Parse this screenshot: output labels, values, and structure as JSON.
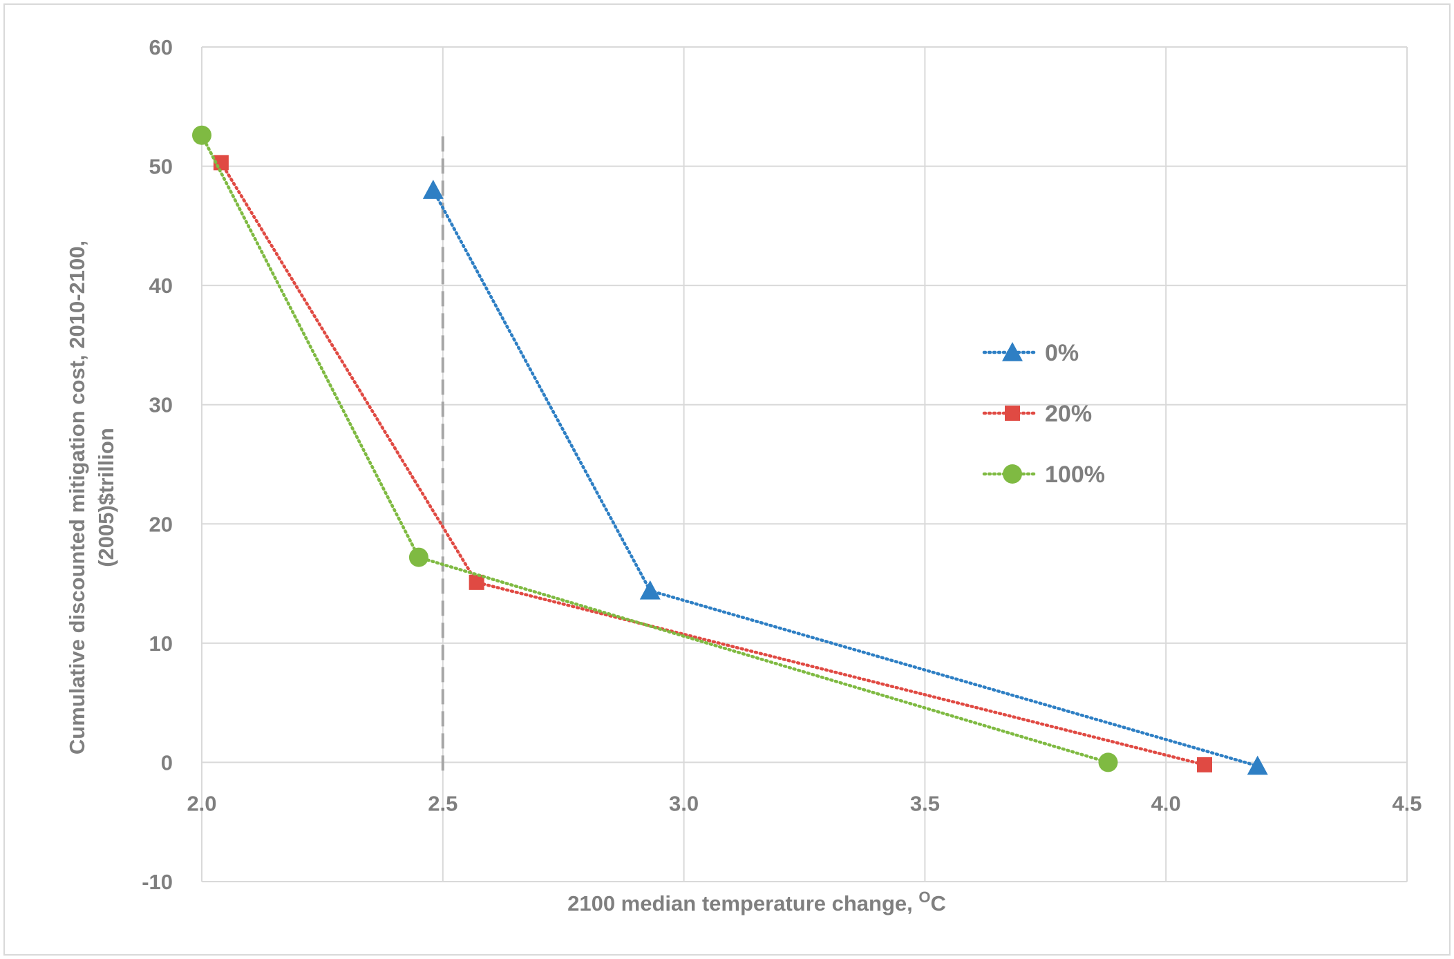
{
  "chart_data": {
    "type": "line",
    "title": "",
    "xlabel": "2100 median temperature change, ",
    "xlabel_unit_sup": "O",
    "xlabel_unit": "C",
    "ylabel_line1": "Cumulative discounted mitigation cost, 2010-2100,",
    "ylabel_line2": "(2005)$trillion",
    "xlim": [
      2.0,
      4.5
    ],
    "ylim": [
      -10,
      60
    ],
    "x_ticks": [
      2.0,
      2.5,
      3.0,
      3.5,
      4.0,
      4.5
    ],
    "x_tick_labels": [
      "2.0",
      "2.5",
      "3.0",
      "3.5",
      "4.0",
      "4.5"
    ],
    "y_ticks": [
      -10,
      0,
      10,
      20,
      30,
      40,
      50,
      60
    ],
    "y_tick_labels": [
      "-10",
      "0",
      "10",
      "20",
      "30",
      "40",
      "50",
      "60"
    ],
    "grid": true,
    "reference_line": {
      "x": 2.5,
      "y_from": 0,
      "y_to": 52.5,
      "style": "dashed",
      "color": "#a6a6a6"
    },
    "legend_position": "right",
    "series": [
      {
        "name": "0%",
        "color": "#2e7fc4",
        "marker": "triangle",
        "x": [
          2.48,
          2.93,
          4.19
        ],
        "y": [
          48.0,
          14.4,
          -0.3
        ]
      },
      {
        "name": "20%",
        "color": "#e04a43",
        "marker": "square",
        "x": [
          2.04,
          2.57,
          4.08
        ],
        "y": [
          50.3,
          15.1,
          -0.2
        ]
      },
      {
        "name": "100%",
        "color": "#7fba42",
        "marker": "circle",
        "x": [
          2.0,
          2.45,
          3.88
        ],
        "y": [
          52.6,
          17.2,
          0.0
        ]
      }
    ]
  }
}
